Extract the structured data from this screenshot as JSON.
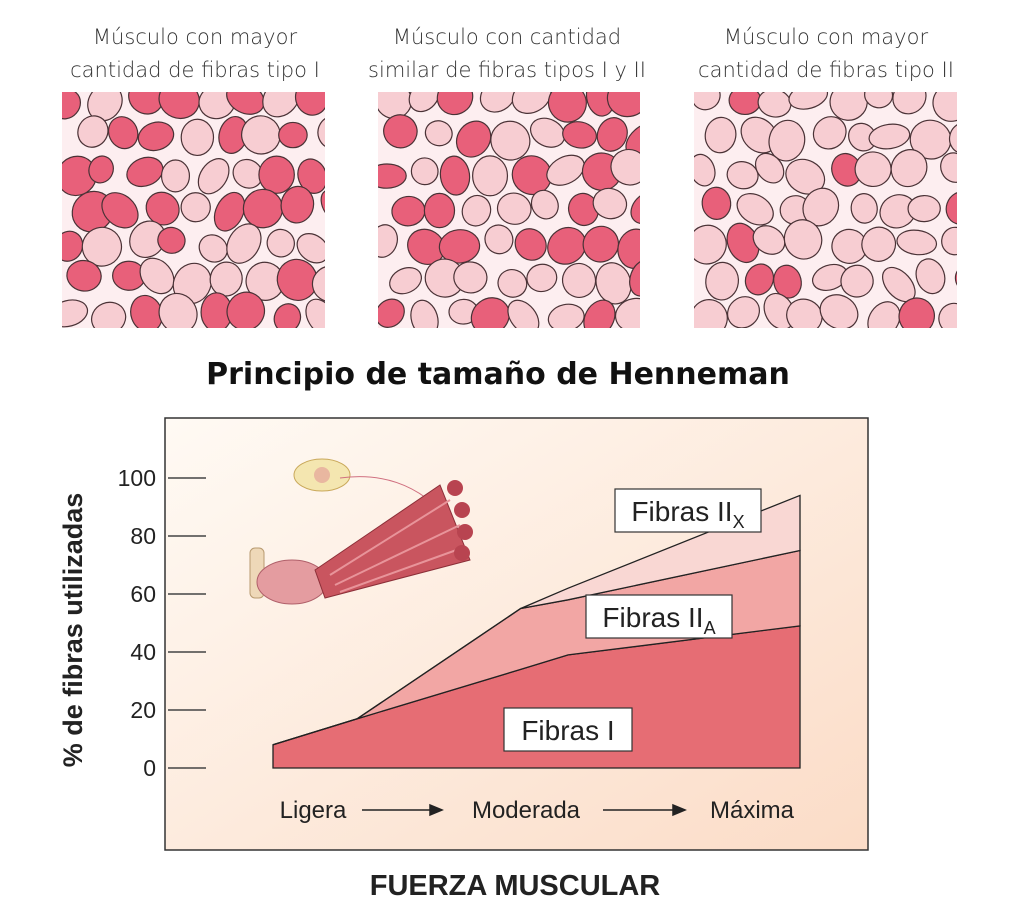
{
  "panels": [
    {
      "caption": [
        "Músculo con mayor",
        "cantidad de fibras tipo I"
      ]
    },
    {
      "caption": [
        "Músculo con cantidad",
        "similar de fibras tipos I y II"
      ]
    },
    {
      "caption": [
        "Músculo con mayor",
        "cantidad de fibras tipo II"
      ]
    }
  ],
  "chart_data": {
    "type": "stacked_area",
    "title": "Principio de tamaño de Henneman",
    "y_label": "% de fibras utilizadas",
    "x_title": "FUERZA MUSCULAR",
    "x_labels": [
      "Ligera",
      "Moderada",
      "Máxima"
    ],
    "x": [
      0,
      16,
      47,
      56,
      100
    ],
    "xlim": [
      0,
      100
    ],
    "ylim": [
      0,
      100
    ],
    "yticks": [
      0,
      20,
      40,
      60,
      80,
      100
    ],
    "series": [
      {
        "name": "Fibras I",
        "color": "#e66d74",
        "values": [
          8,
          17,
          34,
          39,
          49
        ]
      },
      {
        "name": "Fibras II",
        "subscript": "A",
        "color": "#f2a6a4",
        "values": [
          0,
          0,
          21,
          19,
          26
        ]
      },
      {
        "name": "Fibras II",
        "subscript": "X",
        "color": "#f9d7d3",
        "values": [
          0,
          0,
          0,
          4,
          19
        ]
      }
    ]
  }
}
